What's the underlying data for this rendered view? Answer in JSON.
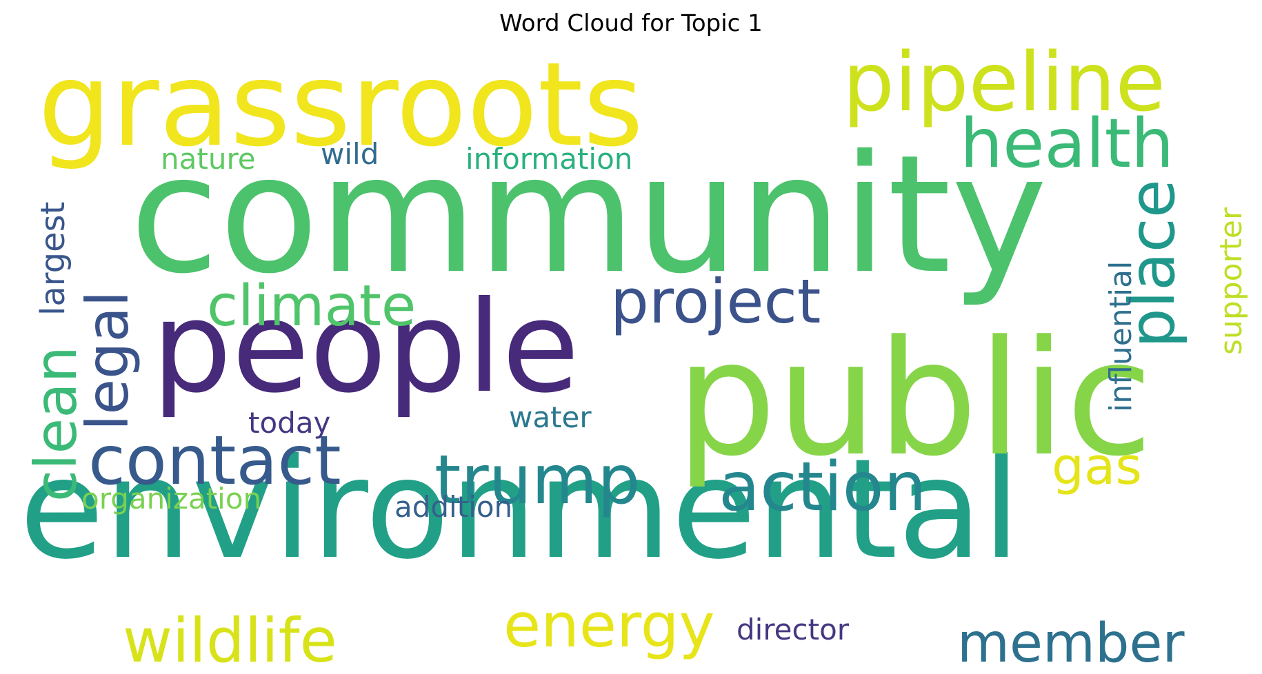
{
  "chart_data": {
    "type": "wordcloud",
    "title": "Word Cloud for Topic 1",
    "background": "#ffffff",
    "colormap": "viridis",
    "words": [
      {
        "text": "community",
        "color": "#4cc26c"
      },
      {
        "text": "environmental",
        "color": "#21a087"
      },
      {
        "text": "public",
        "color": "#86d549"
      },
      {
        "text": "grassroots",
        "color": "#f1e51d"
      },
      {
        "text": "people",
        "color": "#472a7a"
      },
      {
        "text": "pipeline",
        "color": "#cde11d"
      },
      {
        "text": "health",
        "color": "#3aba76"
      },
      {
        "text": "contact",
        "color": "#375a8c"
      },
      {
        "text": "trump",
        "color": "#24878e"
      },
      {
        "text": "action",
        "color": "#24878e"
      },
      {
        "text": "place",
        "color": "#1f978b"
      },
      {
        "text": "climate",
        "color": "#50c46a"
      },
      {
        "text": "project",
        "color": "#3b528b"
      },
      {
        "text": "legal",
        "color": "#3a538b"
      },
      {
        "text": "clean",
        "color": "#3aba76"
      },
      {
        "text": "wildlife",
        "color": "#d8e219"
      },
      {
        "text": "energy",
        "color": "#e7e419"
      },
      {
        "text": "member",
        "color": "#2d718e"
      },
      {
        "text": "gas",
        "color": "#e5e419"
      },
      {
        "text": "influential",
        "color": "#2e6f8e"
      },
      {
        "text": "supporter",
        "color": "#bddf26"
      },
      {
        "text": "largest",
        "color": "#39568c"
      },
      {
        "text": "nature",
        "color": "#5ec962"
      },
      {
        "text": "wild",
        "color": "#2f6c8e"
      },
      {
        "text": "information",
        "color": "#2ab07f"
      },
      {
        "text": "today",
        "color": "#443983"
      },
      {
        "text": "water",
        "color": "#2a788e"
      },
      {
        "text": "organization",
        "color": "#7ad151"
      },
      {
        "text": "addition",
        "color": "#355f8d"
      },
      {
        "text": "director",
        "color": "#453781"
      }
    ]
  }
}
